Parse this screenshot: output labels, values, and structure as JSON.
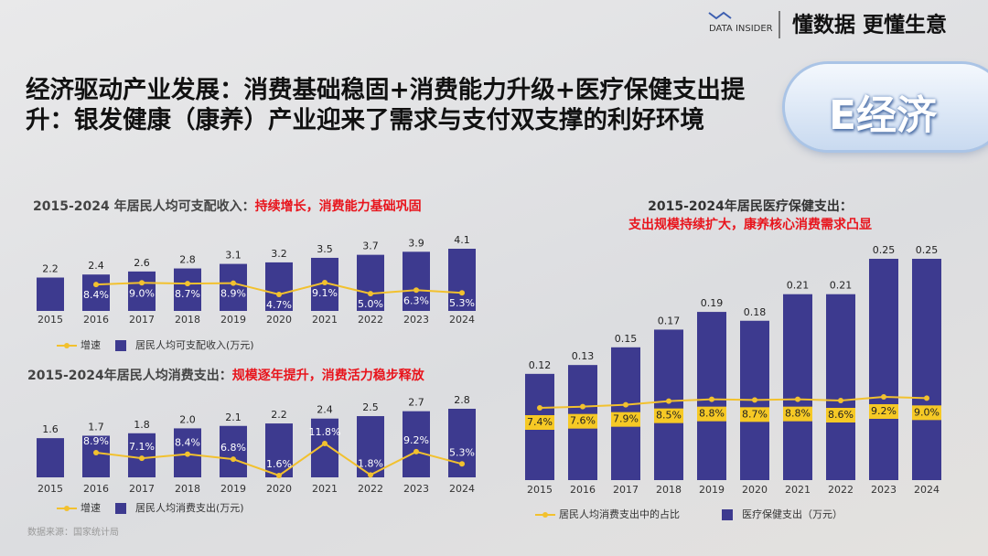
{
  "header": {
    "brand": "DATA INSIDER",
    "slogan": "懂数据 更懂生意",
    "title": "经济驱动产业发展：消费基础稳固+消费能力升级+医疗保健支出提升：银发健康（康养）产业迎来了需求与支付双支撑的利好环境",
    "badge": "E经济"
  },
  "chart_data": [
    {
      "type": "bar",
      "title": "2015-2024 年居民人均可支配收入：",
      "title_highlight": "持续增长，消费能力基础巩固",
      "categories": [
        "2015",
        "2016",
        "2017",
        "2018",
        "2019",
        "2020",
        "2021",
        "2022",
        "2023",
        "2024"
      ],
      "series": [
        {
          "name": "居民人均可支配收入(万元)",
          "color": "#3d3a8f",
          "values": [
            2.2,
            2.4,
            2.6,
            2.8,
            3.1,
            3.2,
            3.5,
            3.7,
            3.9,
            4.1
          ]
        },
        {
          "name": "增速",
          "type": "line",
          "color": "#f2c12e",
          "values": [
            null,
            8.4,
            9,
            8.7,
            8.9,
            4.7,
            9.1,
            5,
            6.3,
            5.3
          ],
          "value_labels": [
            null,
            "8.4%",
            "9.0%",
            "8.7%",
            "8.9%",
            "4.7%",
            "9.1%",
            "5.0%",
            "6.3%",
            "5.3%"
          ]
        }
      ]
    },
    {
      "type": "bar",
      "title": "2015-2024年居民人均消费支出：",
      "title_highlight": "规模逐年提升，消费活力稳步释放",
      "categories": [
        "2015",
        "2016",
        "2017",
        "2018",
        "2019",
        "2020",
        "2021",
        "2022",
        "2023",
        "2024"
      ],
      "series": [
        {
          "name": "居民人均消费支出(万元)",
          "color": "#3d3a8f",
          "values": [
            1.6,
            1.7,
            1.8,
            2,
            2.1,
            2.2,
            2.4,
            2.5,
            2.7,
            2.8
          ],
          "value_labels": [
            "1.6",
            "1.7",
            "1.8",
            "2.0",
            "2.1",
            "2.2",
            "2.4",
            "2.5",
            "2.7",
            "2.8"
          ]
        },
        {
          "name": "增速",
          "type": "line",
          "color": "#f2c12e",
          "values": [
            null,
            8.9,
            7.1,
            8.4,
            6.8,
            1.6,
            11.8,
            1.8,
            9.2,
            5.3
          ],
          "value_labels": [
            null,
            "8.9%",
            "7.1%",
            "8.4%",
            "6.8%",
            "1.6%",
            "11.8%",
            "1.8%",
            "9.2%",
            "5.3%"
          ]
        }
      ]
    },
    {
      "type": "bar",
      "title": "2015-2024年居民医疗保健支出：",
      "subtitle": "支出规模持续扩大，康养核心消费需求凸显",
      "categories": [
        "2015",
        "2016",
        "2017",
        "2018",
        "2019",
        "2020",
        "2021",
        "2022",
        "2023",
        "2024"
      ],
      "series": [
        {
          "name": "居民人均消费支出中的占比",
          "type": "line",
          "color": "#f2c12e",
          "values": [
            7.4,
            7.6,
            7.9,
            8.5,
            8.8,
            8.7,
            8.8,
            8.6,
            9.2,
            9
          ],
          "value_labels": [
            "7.4%",
            "7.6%",
            "7.9%",
            "8.5%",
            "8.8%",
            "8.7%",
            "8.8%",
            "8.6%",
            "9.2%",
            "9.0%"
          ]
        },
        {
          "name": "医疗保健支出（万元）",
          "color": "#3d3a8f",
          "values": [
            0.12,
            0.13,
            0.15,
            0.17,
            0.19,
            0.18,
            0.21,
            0.21,
            0.25,
            0.25
          ]
        }
      ]
    }
  ],
  "source": "数据来源：国家统计局"
}
